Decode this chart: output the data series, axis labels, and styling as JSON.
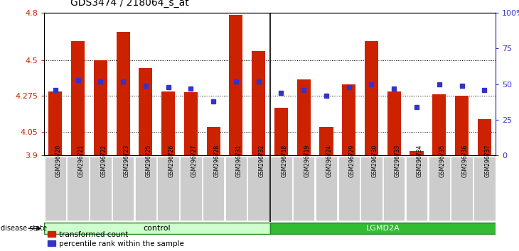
{
  "title": "GDS3474 / 218064_s_at",
  "samples": [
    "GSM296720",
    "GSM296721",
    "GSM296722",
    "GSM296723",
    "GSM296725",
    "GSM296726",
    "GSM296727",
    "GSM296728",
    "GSM296731",
    "GSM296732",
    "GSM296718",
    "GSM296719",
    "GSM296724",
    "GSM296729",
    "GSM296730",
    "GSM296733",
    "GSM296734",
    "GSM296735",
    "GSM296736",
    "GSM296737"
  ],
  "bar_values": [
    4.305,
    4.62,
    4.5,
    4.68,
    4.45,
    4.305,
    4.3,
    4.08,
    4.785,
    4.56,
    4.2,
    4.38,
    4.08,
    4.35,
    4.62,
    4.305,
    3.93,
    4.285,
    4.275,
    4.13
  ],
  "percentile_values": [
    46,
    53,
    52,
    52,
    49,
    48,
    47,
    38,
    52,
    52,
    44,
    46,
    42,
    48,
    50,
    47,
    34,
    50,
    49,
    46
  ],
  "control_count": 10,
  "lgmd_count": 10,
  "ymin": 3.9,
  "ymax": 4.8,
  "yticks": [
    3.9,
    4.05,
    4.275,
    4.5,
    4.8
  ],
  "ytick_labels": [
    "3.9",
    "4.05",
    "4.275",
    "4.5",
    "4.8"
  ],
  "right_yticks": [
    0,
    25,
    50,
    75,
    100
  ],
  "right_ytick_labels": [
    "0",
    "25",
    "50",
    "75",
    "100%"
  ],
  "bar_color": "#cc2200",
  "blue_color": "#3333cc",
  "control_bg": "#ccffcc",
  "lgmd_bg": "#33bb33",
  "tick_bg": "#cccccc",
  "control_label": "control",
  "lgmd_label": "LGMD2A",
  "legend_bar": "transformed count",
  "legend_blue": "percentile rank within the sample",
  "disease_label": "disease state"
}
